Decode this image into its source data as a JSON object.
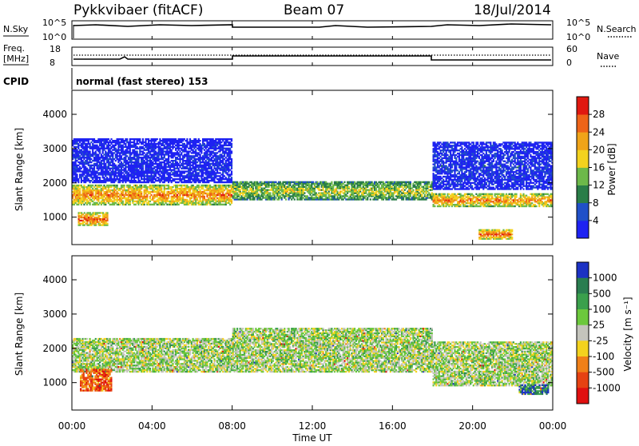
{
  "header": {
    "station": "Pykkvibaer (fitACF)",
    "beam": "Beam 07",
    "date": "18/Jul/2014"
  },
  "top_panels": {
    "nsky_label": "N.Sky",
    "nsearch_label": "N.Search",
    "nsky_ticks": [
      "10^5",
      "10^0"
    ],
    "nsearch_ticks": [
      "10^5",
      "10^0"
    ],
    "freq_label_1": "Freq.",
    "freq_label_2": "[MHz]",
    "freq_ticks": [
      "18",
      "8"
    ],
    "nave_label": "Nave",
    "nave_ticks": [
      "60",
      "0"
    ],
    "cpid_label": "CPID",
    "cpid_text": "normal (fast stereo) 153"
  },
  "time_axis": {
    "label": "Time UT",
    "ticks": [
      "00:00",
      "04:00",
      "08:00",
      "12:00",
      "16:00",
      "20:00",
      "00:00"
    ]
  },
  "chart_data": [
    {
      "type": "heatmap",
      "title": "",
      "xlabel": "Time UT",
      "ylabel": "Slant Range [km]",
      "ylim": [
        200,
        4700
      ],
      "xlim_hours": [
        0,
        24
      ],
      "y_ticks": [
        "1000",
        "2000",
        "3000",
        "4000"
      ],
      "colorbar_label": "Power [dB]",
      "colorbar_ticks": [
        "4",
        "8",
        "12",
        "16",
        "20",
        "24",
        "28"
      ],
      "colors": [
        "#1e22f2",
        "#2050c8",
        "#2a7d48",
        "#6db94a",
        "#f3d21e",
        "#f0a419",
        "#ee6418",
        "#e01810"
      ],
      "bands": [
        {
          "t0": 0.0,
          "t1": 8.0,
          "r0": 1350,
          "r1": 1950,
          "level": 0.8
        },
        {
          "t0": 8.0,
          "t1": 18.0,
          "r0": 1500,
          "r1": 2050,
          "level": 0.55
        },
        {
          "t0": 18.0,
          "t1": 24.0,
          "r0": 1300,
          "r1": 1700,
          "level": 0.8
        },
        {
          "t0": 0.3,
          "t1": 1.8,
          "r0": 750,
          "r1": 1150,
          "level": 0.9
        },
        {
          "t0": 20.3,
          "t1": 22.0,
          "r0": 350,
          "r1": 650,
          "level": 0.9
        },
        {
          "t0": 0.0,
          "t1": 8.0,
          "r0": 2000,
          "r1": 3300,
          "level": 0.05
        },
        {
          "t0": 18.0,
          "t1": 24.0,
          "r0": 1800,
          "r1": 3200,
          "level": 0.1
        }
      ]
    },
    {
      "type": "heatmap",
      "title": "",
      "xlabel": "Time UT",
      "ylabel": "Slant Range [km]",
      "ylim": [
        200,
        4700
      ],
      "xlim_hours": [
        0,
        24
      ],
      "y_ticks": [
        "1000",
        "2000",
        "3000",
        "4000"
      ],
      "colorbar_label": "Velocity [m s⁻¹]",
      "colorbar_ticks": [
        "1000",
        "500",
        "100",
        "25",
        "-25",
        "-100",
        "-500",
        "-1000"
      ],
      "colors": [
        "#1c32c4",
        "#2a7d50",
        "#3aa04c",
        "#6cc83c",
        "#c4c4bc",
        "#f3d21e",
        "#f08018",
        "#e64212",
        "#e01010"
      ],
      "bands": [
        {
          "t0": 0.0,
          "t1": 8.0,
          "r0": 1300,
          "r1": 2300,
          "level": 0.45
        },
        {
          "t0": 8.0,
          "t1": 18.0,
          "r0": 1300,
          "r1": 2600,
          "level": 0.45
        },
        {
          "t0": 18.0,
          "t1": 24.0,
          "r0": 900,
          "r1": 2200,
          "level": 0.45
        },
        {
          "t0": 0.4,
          "t1": 2.0,
          "r0": 750,
          "r1": 1400,
          "level": 0.8
        },
        {
          "t0": 22.3,
          "t1": 23.8,
          "r0": 650,
          "r1": 950,
          "level": 0.15
        }
      ]
    }
  ]
}
